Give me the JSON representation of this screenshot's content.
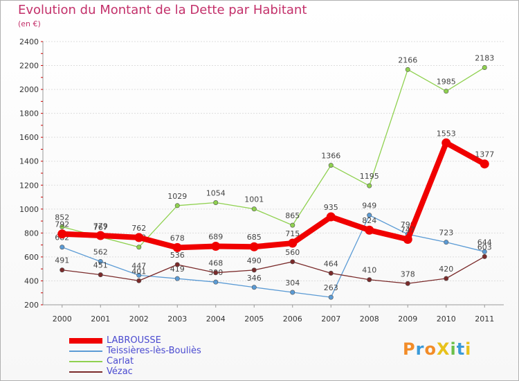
{
  "header": {
    "title": "Evolution du Montant de la Dette par Habitant",
    "subtitle": "(en €)"
  },
  "logo": {
    "text": "ProXiti",
    "colors": [
      "#f28c28",
      "#3a9ad9",
      "#f28c28",
      "#e8c21c",
      "#6cc04a",
      "#3a9ad9",
      "#e8c21c"
    ]
  },
  "chart_data": {
    "type": "line",
    "title": "Evolution du Montant de la Dette par Habitant",
    "ylabel": "(en €)",
    "xlabel": "",
    "ylim": [
      200,
      2400
    ],
    "yticks": [
      200,
      400,
      600,
      800,
      1000,
      1200,
      1400,
      1600,
      1800,
      2000,
      2200,
      2400
    ],
    "categories": [
      "2000",
      "2001",
      "2002",
      "2003",
      "2004",
      "2005",
      "2006",
      "2007",
      "2008",
      "2009",
      "2010",
      "2011"
    ],
    "legend_position": "bottom-left",
    "series": [
      {
        "name": "Teissières-lès-Bouliès",
        "color": "#5b9bd5",
        "values": [
          682,
          562,
          447,
          419,
          390,
          346,
          304,
          263,
          949,
          790,
          723,
          644
        ],
        "labels": [
          "682",
          "562",
          "447",
          "419",
          "390",
          "346",
          "304",
          "263",
          "949",
          "790",
          "723",
          "644"
        ]
      },
      {
        "name": "Carlat",
        "color": "#8fd14f",
        "values": [
          852,
          767,
          682,
          1029,
          1054,
          1001,
          865,
          1366,
          1195,
          2166,
          1985,
          2183
        ],
        "labels": [
          "852",
          "767",
          "682",
          "1029",
          "1054",
          "1001",
          "865",
          "1366",
          "1195",
          "2166",
          "1985",
          "2183"
        ]
      },
      {
        "name": "Vézac",
        "color": "#7a2a2a",
        "values": [
          491,
          451,
          401,
          536,
          468,
          490,
          560,
          464,
          410,
          378,
          420,
          603
        ],
        "labels": [
          "491",
          "451",
          "401",
          "536",
          "468",
          "490",
          "560",
          "464",
          "410",
          "378",
          "420",
          "603"
        ]
      },
      {
        "name": "LABROUSSE",
        "color": "#f00000",
        "values": [
          792,
          779,
          762,
          678,
          689,
          685,
          715,
          935,
          824,
          747,
          1553,
          1377
        ],
        "labels": [
          "792",
          "779",
          "762",
          "678",
          "689",
          "685",
          "715",
          "935",
          "824",
          "747",
          "1553",
          "1377"
        ]
      }
    ],
    "legend": [
      {
        "name": "LABROUSSE",
        "color": "#f00000"
      },
      {
        "name": "Teissières-lès-Bouliès",
        "color": "#5b9bd5"
      },
      {
        "name": "Carlat",
        "color": "#8fd14f"
      },
      {
        "name": "Vézac",
        "color": "#7a2a2a"
      }
    ]
  }
}
